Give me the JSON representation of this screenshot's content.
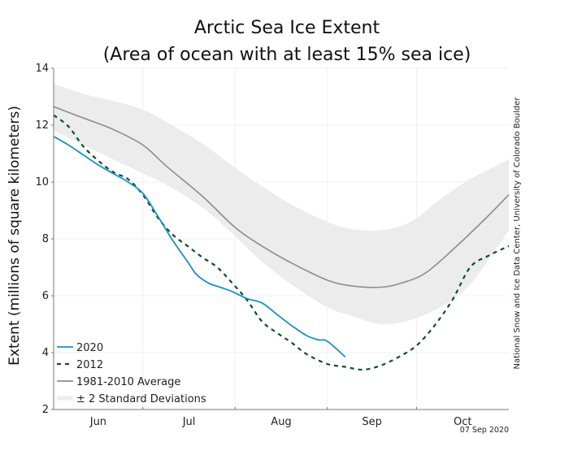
{
  "chart_data": {
    "type": "line",
    "title": "Arctic Sea Ice Extent",
    "subtitle": "(Area of ocean with at least 15% sea ice)",
    "xlabel": "",
    "ylabel": "Extent (millions of square kilometers)",
    "ylim": [
      2,
      14
    ],
    "yticks": [
      2,
      4,
      6,
      8,
      10,
      12,
      14
    ],
    "x_unit": "days since Jun 1",
    "xlim": [
      0,
      153
    ],
    "month_ticks": [
      {
        "label": "Jun",
        "start": 0,
        "end": 30
      },
      {
        "label": "Jul",
        "start": 30,
        "end": 61
      },
      {
        "label": "Aug",
        "start": 61,
        "end": 92
      },
      {
        "label": "Sep",
        "start": 92,
        "end": 122
      },
      {
        "label": "Oct",
        "start": 122,
        "end": 153
      }
    ],
    "grid": true,
    "legend_position": "bottom-left",
    "series": [
      {
        "name": "± 2 Standard Deviations",
        "kind": "band",
        "color": "#ececec",
        "x": [
          0,
          10,
          20,
          30,
          38,
          50,
          61,
          70,
          80,
          92,
          100,
          110,
          120,
          130,
          140,
          153
        ],
        "upper": [
          13.45,
          13.1,
          12.85,
          12.55,
          12.1,
          11.35,
          10.5,
          9.85,
          9.2,
          8.6,
          8.35,
          8.3,
          8.6,
          9.4,
          10.1,
          10.8
        ],
        "lower": [
          11.8,
          11.3,
          10.8,
          10.3,
          9.9,
          9.1,
          8.1,
          7.2,
          6.4,
          5.6,
          5.3,
          5.0,
          5.15,
          5.6,
          6.4,
          8.3
        ]
      },
      {
        "name": "1981-2010 Average",
        "kind": "line",
        "color": "#8c8c8c",
        "x": [
          0,
          10,
          20,
          30,
          38,
          50,
          61,
          70,
          80,
          92,
          100,
          110,
          117,
          125,
          135,
          145,
          153
        ],
        "values": [
          12.65,
          12.25,
          11.85,
          11.3,
          10.55,
          9.5,
          8.4,
          7.75,
          7.15,
          6.55,
          6.35,
          6.3,
          6.45,
          6.8,
          7.7,
          8.7,
          9.55
        ]
      },
      {
        "name": "2012",
        "kind": "line",
        "dashed": true,
        "color": "#0f4d32",
        "x": [
          0,
          5,
          10,
          15,
          20,
          25,
          30,
          35,
          40,
          45,
          50,
          55,
          60,
          65,
          70,
          75,
          80,
          85,
          92,
          98,
          104,
          110,
          116,
          122,
          128,
          134,
          140,
          146,
          153
        ],
        "values": [
          12.35,
          11.95,
          11.25,
          10.75,
          10.35,
          10.1,
          9.55,
          8.75,
          8.15,
          7.75,
          7.35,
          7.0,
          6.45,
          5.85,
          5.1,
          4.7,
          4.35,
          3.95,
          3.6,
          3.5,
          3.4,
          3.55,
          3.85,
          4.25,
          4.95,
          5.85,
          7.0,
          7.4,
          7.75
        ]
      },
      {
        "name": "2020",
        "kind": "line",
        "color": "#1a8fc6",
        "x": [
          0,
          5,
          10,
          15,
          20,
          25,
          30,
          35,
          40,
          45,
          48,
          52,
          56,
          60,
          65,
          70,
          75,
          80,
          85,
          89,
          92,
          98
        ],
        "values": [
          11.6,
          11.3,
          10.95,
          10.6,
          10.3,
          10.0,
          9.6,
          8.8,
          7.95,
          7.2,
          6.75,
          6.45,
          6.3,
          6.15,
          5.9,
          5.75,
          5.35,
          4.95,
          4.6,
          4.45,
          4.4,
          3.85
        ]
      }
    ],
    "credit": "National Snow and Ice Data Center, University of Colorado Boulder",
    "date_stamp": "07 Sep 2020"
  }
}
